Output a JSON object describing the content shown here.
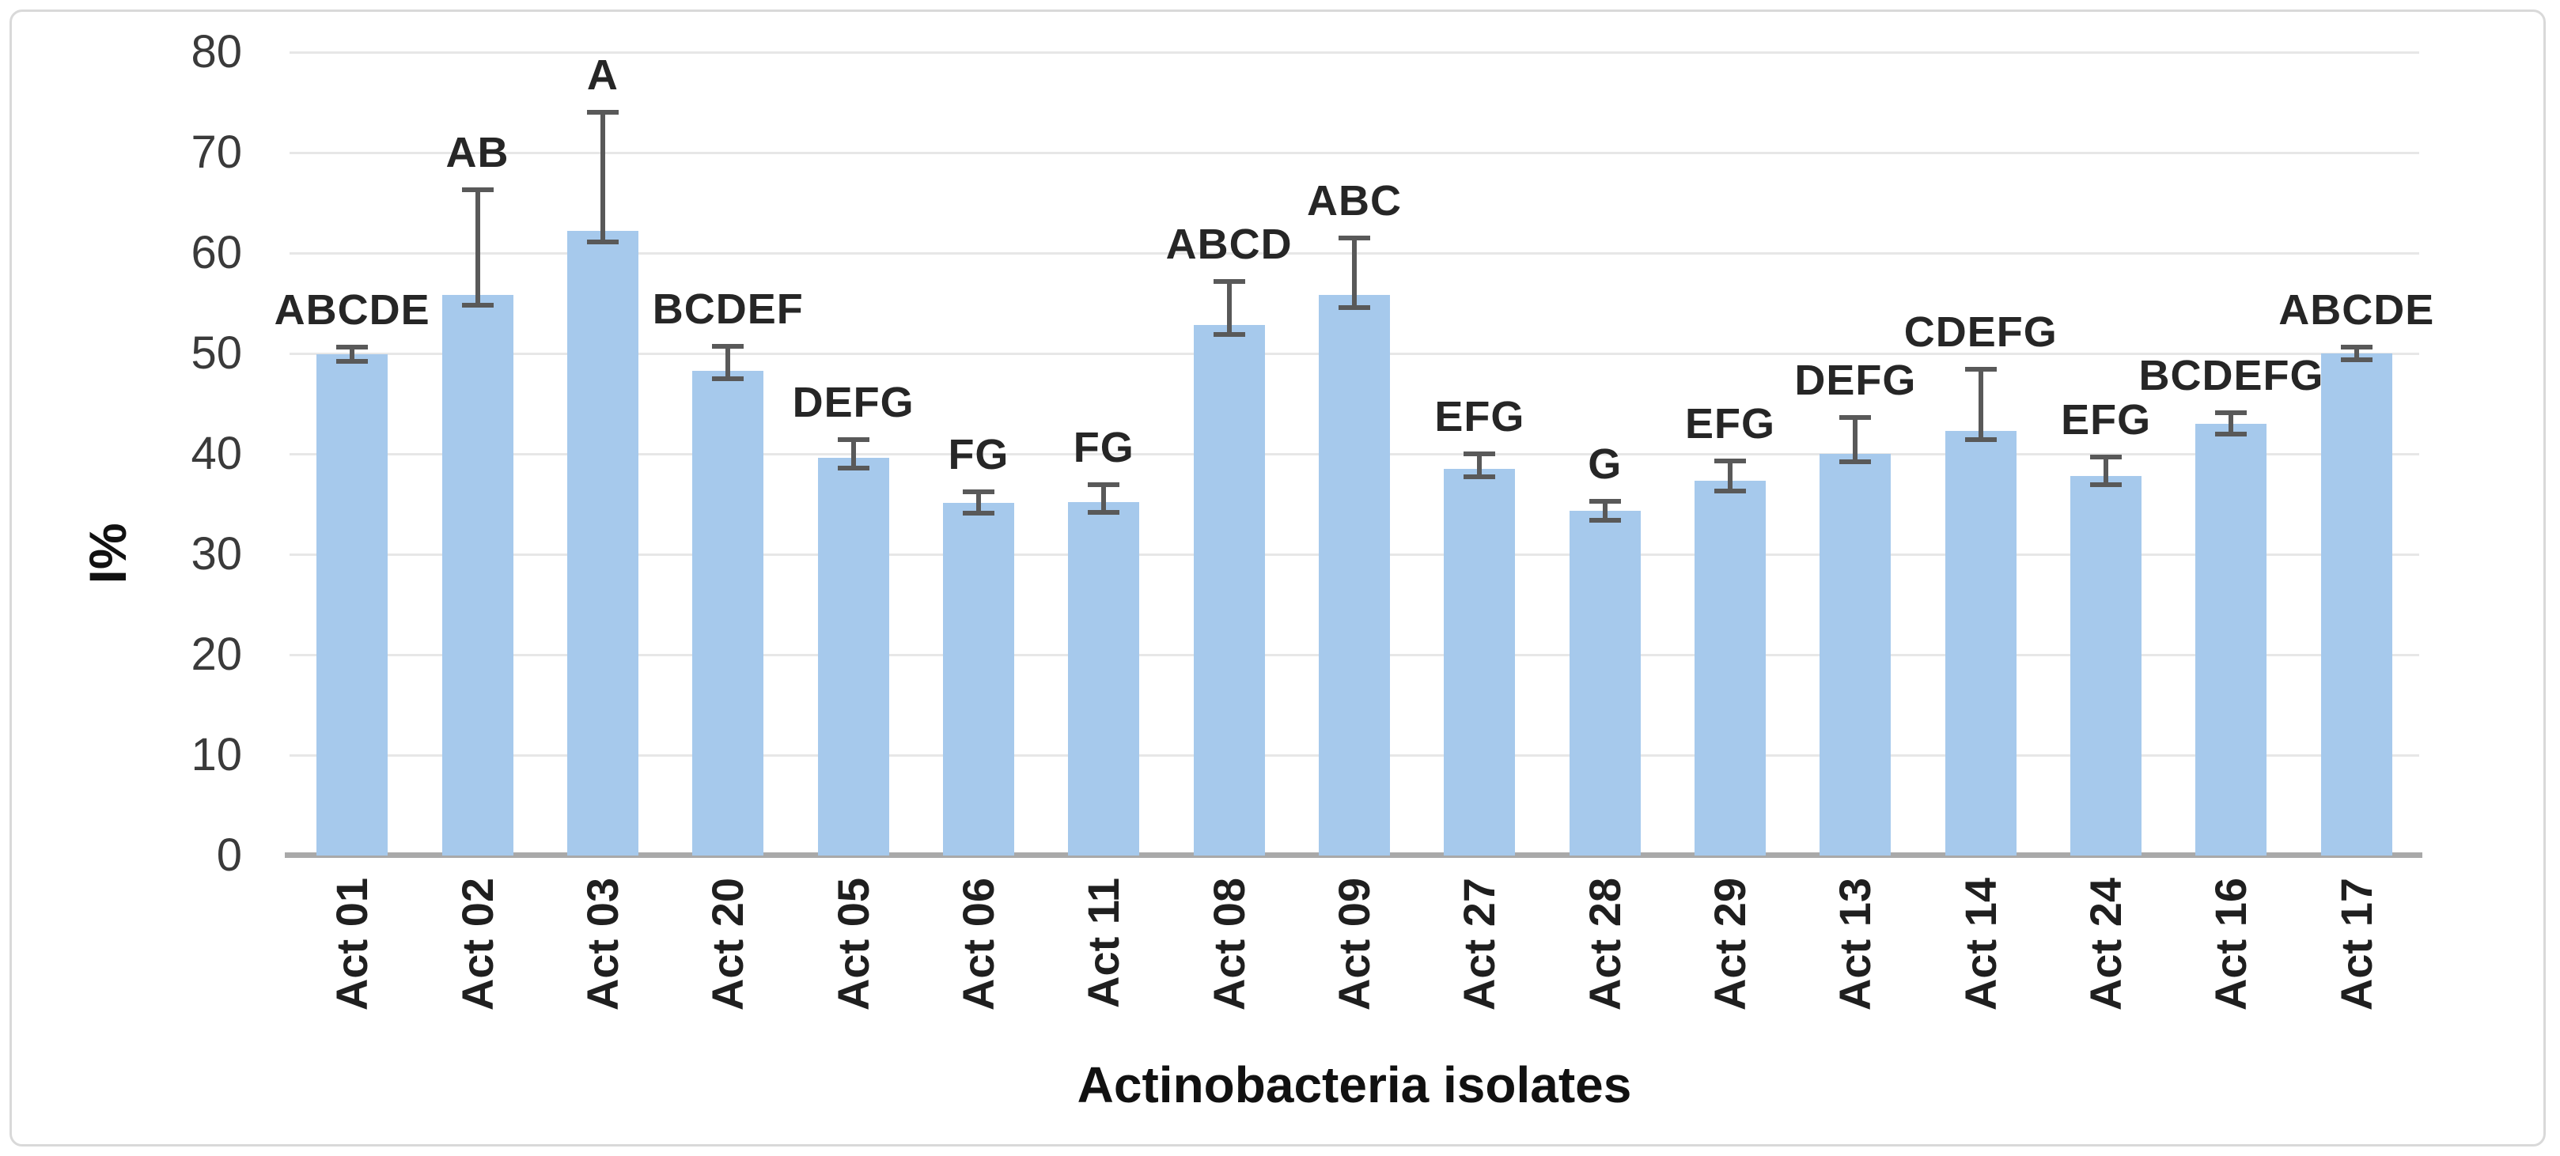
{
  "chart_data": {
    "type": "bar",
    "title": "",
    "xlabel": "Actinobacteria isolates",
    "ylabel": "I%",
    "ylim": [
      0,
      80
    ],
    "yticks": [
      0,
      10,
      20,
      30,
      40,
      50,
      60,
      70,
      80
    ],
    "grid": true,
    "legend": "none",
    "categories": [
      "Act 01",
      "Act 02",
      "Act 03",
      "Act 20",
      "Act 05",
      "Act 06",
      "Act 11",
      "Act 08",
      "Act 09",
      "Act 27",
      "Act 28",
      "Act 29",
      "Act 13",
      "Act 14",
      "Act 24",
      "Act 16",
      "Act 17"
    ],
    "series": [
      {
        "name": "I%",
        "values": [
          49.9,
          55.8,
          62.2,
          48.3,
          39.6,
          35.1,
          35.2,
          52.8,
          55.8,
          38.5,
          34.3,
          37.3,
          40.0,
          42.3,
          37.8,
          43.0,
          50.0
        ],
        "error_plus": [
          0.7,
          10.5,
          11.8,
          2.4,
          1.8,
          1.1,
          1.7,
          4.4,
          5.7,
          1.5,
          1.0,
          2.0,
          3.6,
          6.1,
          1.9,
          1.1,
          0.6
        ],
        "error_minus": [
          0.7,
          1.0,
          1.1,
          0.8,
          1.0,
          1.0,
          1.0,
          0.9,
          1.2,
          0.8,
          0.9,
          1.0,
          0.8,
          0.9,
          0.9,
          1.0,
          0.6
        ],
        "significance_letters": [
          "ABCDE",
          "AB",
          "A",
          "BCDEF",
          "DEFG",
          "FG",
          "FG",
          "ABCD",
          "ABC",
          "EFG",
          "G",
          "EFG",
          "DEFG",
          "CDEFG",
          "EFG",
          "BCDEFG",
          "ABCDE"
        ]
      }
    ],
    "colors": {
      "bar_fill": "#A6C9EC",
      "error_bar": "#595959",
      "gridline": "#E7E7E7",
      "axis_line": "#A9A9A9",
      "tick_text": "#3A3A3A",
      "label_text": "#1F1F1F",
      "chart_border": "#D9D9D9",
      "background": "#FFFFFF"
    }
  }
}
